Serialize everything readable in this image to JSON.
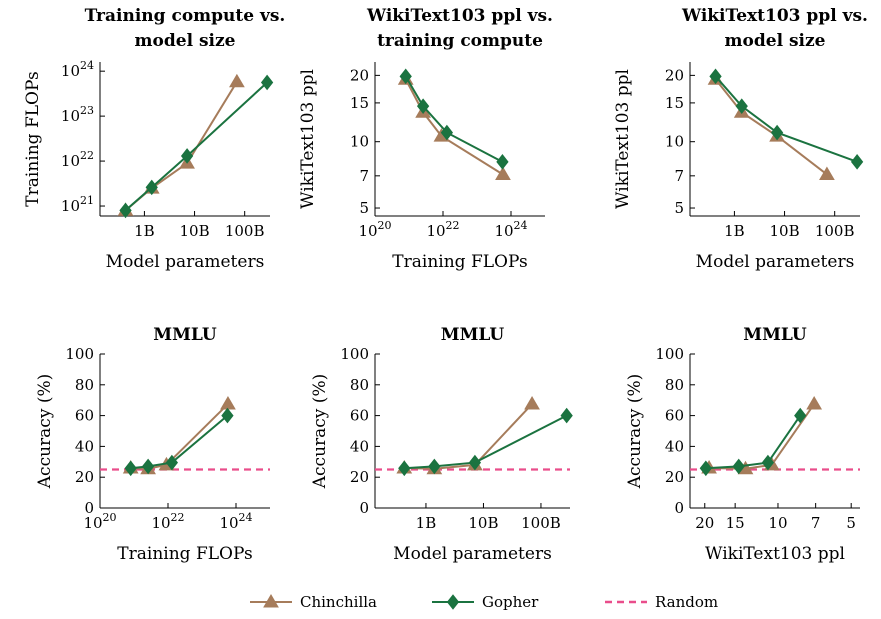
{
  "legend": {
    "items": [
      {
        "label": "Chinchilla",
        "color": "#A67C5B",
        "marker": "triangle",
        "style": "solid"
      },
      {
        "label": "Gopher",
        "color": "#1B7340",
        "marker": "diamond",
        "style": "solid"
      },
      {
        "label": "Random",
        "color": "#E94D8B",
        "marker": "none",
        "style": "dashed"
      }
    ]
  },
  "chart_data": [
    {
      "id": "p1",
      "type": "line",
      "title": [
        "Training compute vs.",
        "model size"
      ],
      "xlabel": "Model parameters",
      "ylabel": "Training FLOPs",
      "xscale": "log",
      "yscale": "log",
      "xlim": [
        130000000.0,
        320000000000.0
      ],
      "ylim": [
        6e+20,
        1.6e+24
      ],
      "xticks": [
        {
          "v": 1000000000.0,
          "label": "1B"
        },
        {
          "v": 10000000000.0,
          "label": "10B"
        },
        {
          "v": 100000000000.0,
          "label": "100B"
        }
      ],
      "yticks": [
        {
          "v": 1e+21,
          "label": "10",
          "exp": "21"
        },
        {
          "v": 1e+22,
          "label": "10",
          "exp": "22"
        },
        {
          "v": 1e+23,
          "label": "10",
          "exp": "23"
        },
        {
          "v": 1e+24,
          "label": "10",
          "exp": "24"
        }
      ],
      "series": [
        {
          "name": "Chinchilla",
          "x": [
            420000000.0,
            1400000000.0,
            7100000000.0,
            70000000000.0
          ],
          "y": [
            8e+20,
            2.5e+21,
            9e+21,
            5.8e+23
          ]
        },
        {
          "name": "Gopher",
          "x": [
            420000000.0,
            1400000000.0,
            7100000000.0,
            280000000000.0
          ],
          "y": [
            8e+20,
            2.6e+21,
            1.3e+22,
            5.6e+23
          ]
        }
      ]
    },
    {
      "id": "p2",
      "type": "line",
      "title": [
        "WikiText103 ppl vs.",
        "training compute"
      ],
      "xlabel": "Training FLOPs",
      "ylabel": "WikiText103 ppl",
      "xscale": "log",
      "yscale": "log-reversed",
      "xlim": [
        1e+20,
        1e+25
      ],
      "ylim": [
        4.6,
        23
      ],
      "xticks": [
        {
          "v": 1e+20,
          "label": "10",
          "exp": "20"
        },
        {
          "v": 1e+22,
          "label": "10",
          "exp": "22"
        },
        {
          "v": 1e+24,
          "label": "10",
          "exp": "24"
        }
      ],
      "yticks": [
        {
          "v": 5,
          "label": "5"
        },
        {
          "v": 7,
          "label": "7"
        },
        {
          "v": 10,
          "label": "10"
        },
        {
          "v": 15,
          "label": "15"
        },
        {
          "v": 20,
          "label": "20"
        }
      ],
      "series": [
        {
          "name": "Chinchilla",
          "x": [
            8e+20,
            2.6e+21,
            9e+21,
            5.8e+23
          ],
          "y": [
            19.2,
            13.6,
            10.6,
            7.1
          ]
        },
        {
          "name": "Gopher",
          "x": [
            8e+20,
            2.6e+21,
            1.3e+22,
            5.6e+23
          ],
          "y": [
            19.8,
            14.5,
            11,
            8.1
          ]
        }
      ]
    },
    {
      "id": "p3",
      "type": "line",
      "title": [
        "WikiText103 ppl vs.",
        "model size"
      ],
      "xlabel": "Model parameters",
      "ylabel": "WikiText103 ppl",
      "xscale": "log",
      "yscale": "log-reversed",
      "xlim": [
        130000000.0,
        320000000000.0
      ],
      "ylim": [
        4.6,
        23
      ],
      "xticks": [
        {
          "v": 1000000000.0,
          "label": "1B"
        },
        {
          "v": 10000000000.0,
          "label": "10B"
        },
        {
          "v": 100000000000.0,
          "label": "100B"
        }
      ],
      "yticks": [
        {
          "v": 5,
          "label": "5"
        },
        {
          "v": 7,
          "label": "7"
        },
        {
          "v": 10,
          "label": "10"
        },
        {
          "v": 15,
          "label": "15"
        },
        {
          "v": 20,
          "label": "20"
        }
      ],
      "series": [
        {
          "name": "Chinchilla",
          "x": [
            420000000.0,
            1400000000.0,
            7100000000.0,
            70000000000.0
          ],
          "y": [
            19.2,
            13.6,
            10.6,
            7.1
          ]
        },
        {
          "name": "Gopher",
          "x": [
            420000000.0,
            1400000000.0,
            7100000000.0,
            280000000000.0
          ],
          "y": [
            19.8,
            14.5,
            11,
            8.1
          ]
        }
      ]
    },
    {
      "id": "p4",
      "type": "line",
      "title": [
        "MMLU"
      ],
      "xlabel": "Training FLOPs",
      "ylabel": "Accuracy (%)",
      "xscale": "log",
      "yscale": "linear",
      "xlim": [
        1e+20,
        1e+25
      ],
      "ylim": [
        0,
        100
      ],
      "xticks": [
        {
          "v": 1e+20,
          "label": "10",
          "exp": "20"
        },
        {
          "v": 1e+22,
          "label": "10",
          "exp": "22"
        },
        {
          "v": 1e+24,
          "label": "10",
          "exp": "24"
        }
      ],
      "yticks": [
        {
          "v": 0,
          "label": "0"
        },
        {
          "v": 20,
          "label": "20"
        },
        {
          "v": 40,
          "label": "40"
        },
        {
          "v": 60,
          "label": "60"
        },
        {
          "v": 80,
          "label": "80"
        },
        {
          "v": 100,
          "label": "100"
        }
      ],
      "baseline": {
        "name": "Random",
        "value": 25
      },
      "series": [
        {
          "name": "Chinchilla",
          "x": [
            8e+20,
            2.6e+21,
            9e+21,
            5.8e+23
          ],
          "y": [
            26,
            25.5,
            28,
            67.5
          ]
        },
        {
          "name": "Gopher",
          "x": [
            8e+20,
            2.6e+21,
            1.3e+22,
            5.6e+23
          ],
          "y": [
            25.8,
            27,
            29.5,
            60
          ]
        }
      ]
    },
    {
      "id": "p5",
      "type": "line",
      "title": [
        "MMLU"
      ],
      "xlabel": "Model parameters",
      "ylabel": "Accuracy (%)",
      "xscale": "log",
      "yscale": "linear",
      "xlim": [
        130000000.0,
        320000000000.0
      ],
      "ylim": [
        0,
        100
      ],
      "xticks": [
        {
          "v": 1000000000.0,
          "label": "1B"
        },
        {
          "v": 10000000000.0,
          "label": "10B"
        },
        {
          "v": 100000000000.0,
          "label": "100B"
        }
      ],
      "yticks": [
        {
          "v": 0,
          "label": "0"
        },
        {
          "v": 20,
          "label": "20"
        },
        {
          "v": 40,
          "label": "40"
        },
        {
          "v": 60,
          "label": "60"
        },
        {
          "v": 80,
          "label": "80"
        },
        {
          "v": 100,
          "label": "100"
        }
      ],
      "baseline": {
        "name": "Random",
        "value": 25
      },
      "series": [
        {
          "name": "Chinchilla",
          "x": [
            420000000.0,
            1400000000.0,
            7100000000.0,
            70000000000.0
          ],
          "y": [
            26,
            25.5,
            28,
            67.5
          ]
        },
        {
          "name": "Gopher",
          "x": [
            420000000.0,
            1400000000.0,
            7100000000.0,
            280000000000.0
          ],
          "y": [
            25.8,
            27,
            29.5,
            60
          ]
        }
      ]
    },
    {
      "id": "p6",
      "type": "line",
      "title": [
        "MMLU"
      ],
      "xlabel": "WikiText103 ppl",
      "ylabel": "Accuracy (%)",
      "xscale": "log-reversed",
      "yscale": "linear",
      "xlim": [
        23,
        4.6
      ],
      "ylim": [
        0,
        100
      ],
      "xticks": [
        {
          "v": 20,
          "label": "20"
        },
        {
          "v": 15,
          "label": "15"
        },
        {
          "v": 10,
          "label": "10"
        },
        {
          "v": 7,
          "label": "7"
        },
        {
          "v": 5,
          "label": "5"
        }
      ],
      "yticks": [
        {
          "v": 0,
          "label": "0"
        },
        {
          "v": 20,
          "label": "20"
        },
        {
          "v": 40,
          "label": "40"
        },
        {
          "v": 60,
          "label": "60"
        },
        {
          "v": 80,
          "label": "80"
        },
        {
          "v": 100,
          "label": "100"
        }
      ],
      "baseline": {
        "name": "Random",
        "value": 25
      },
      "series": [
        {
          "name": "Chinchilla",
          "x": [
            19.2,
            13.6,
            10.6,
            7.1
          ],
          "y": [
            26,
            25.5,
            28,
            67.5
          ]
        },
        {
          "name": "Gopher",
          "x": [
            19.8,
            14.5,
            11,
            8.1
          ],
          "y": [
            25.8,
            27,
            29.5,
            60
          ]
        }
      ]
    }
  ]
}
